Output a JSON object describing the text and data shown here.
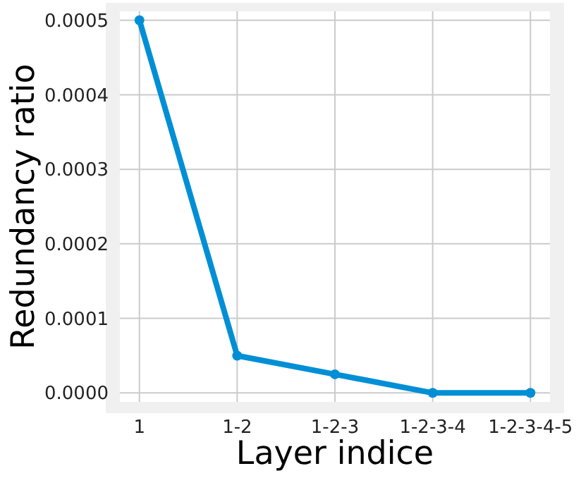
{
  "chart_data": {
    "type": "line",
    "xlabel": "Layer indice",
    "ylabel": "Redundancy ratio",
    "categories": [
      "1",
      "1-2",
      "1-2-3",
      "1-2-3-4",
      "1-2-3-4-5"
    ],
    "series": [
      {
        "color": "#008fd5",
        "values": [
          0.0005,
          5e-05,
          2.5e-05,
          0,
          0
        ]
      }
    ],
    "ylim": [
      -1.2e-05,
      0.000512
    ],
    "yticks": [
      {
        "value": 0,
        "label": "0.0000"
      },
      {
        "value": 0.0001,
        "label": "0.0001"
      },
      {
        "value": 0.0002,
        "label": "0.0002"
      },
      {
        "value": 0.0003,
        "label": "0.0003"
      },
      {
        "value": 0.0004,
        "label": "0.0004"
      },
      {
        "value": 0.0005,
        "label": "0.0005"
      }
    ],
    "grid": true,
    "marker": "circle",
    "line_style": "solid"
  }
}
